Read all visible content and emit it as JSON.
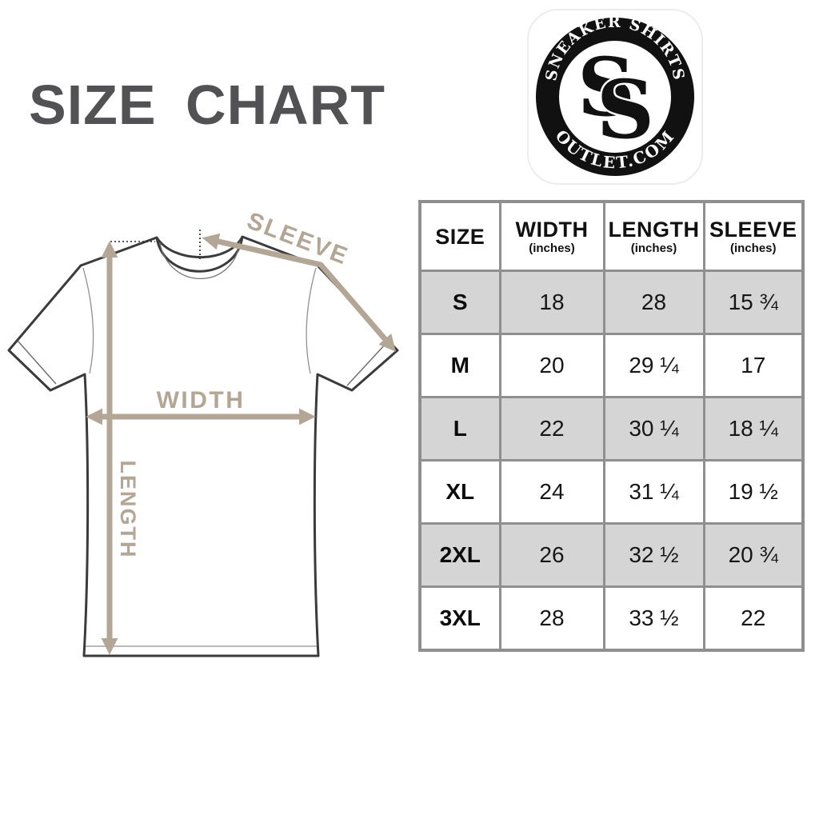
{
  "title": "SIZE CHART",
  "logo": {
    "top_text": "SNEAKER SHIRTS",
    "bottom_text": "OUTLET.COM",
    "monogram": "SS"
  },
  "diagram": {
    "labels": {
      "width": "WIDTH",
      "length": "LENGTH",
      "sleeve": "SLEEVE"
    },
    "arrow_color": "#b4a695",
    "outline_color": "#3b3b3b"
  },
  "table": {
    "columns": [
      {
        "label": "SIZE",
        "sublabel": ""
      },
      {
        "label": "WIDTH",
        "sublabel": "(inches)"
      },
      {
        "label": "LENGTH",
        "sublabel": "(inches)"
      },
      {
        "label": "SLEEVE",
        "sublabel": "(inches)"
      }
    ],
    "rows": [
      {
        "size": "S",
        "width": "18",
        "length": "28",
        "sleeve": "15 ¾"
      },
      {
        "size": "M",
        "width": "20",
        "length": "29 ¼",
        "sleeve": "17"
      },
      {
        "size": "L",
        "width": "22",
        "length": "30 ¼",
        "sleeve": "18 ¼"
      },
      {
        "size": "XL",
        "width": "24",
        "length": "31 ¼",
        "sleeve": "19 ½"
      },
      {
        "size": "2XL",
        "width": "26",
        "length": "32 ½",
        "sleeve": "20 ¾"
      },
      {
        "size": "3XL",
        "width": "28",
        "length": "33 ½",
        "sleeve": "22"
      }
    ],
    "colors": {
      "border": "#8f8f8f",
      "row_alt": "#d5d5d5",
      "row": "#ffffff"
    }
  },
  "colors": {
    "title": "#525254"
  },
  "chart_data": {
    "type": "table",
    "title": "SIZE CHART",
    "columns": [
      "SIZE",
      "WIDTH (inches)",
      "LENGTH (inches)",
      "SLEEVE (inches)"
    ],
    "rows": [
      [
        "S",
        18,
        28,
        15.75
      ],
      [
        "M",
        20,
        29.25,
        17
      ],
      [
        "L",
        22,
        30.25,
        18.25
      ],
      [
        "XL",
        24,
        31.25,
        19.5
      ],
      [
        "2XL",
        26,
        32.5,
        20.75
      ],
      [
        "3XL",
        28,
        33.5,
        22
      ]
    ]
  }
}
